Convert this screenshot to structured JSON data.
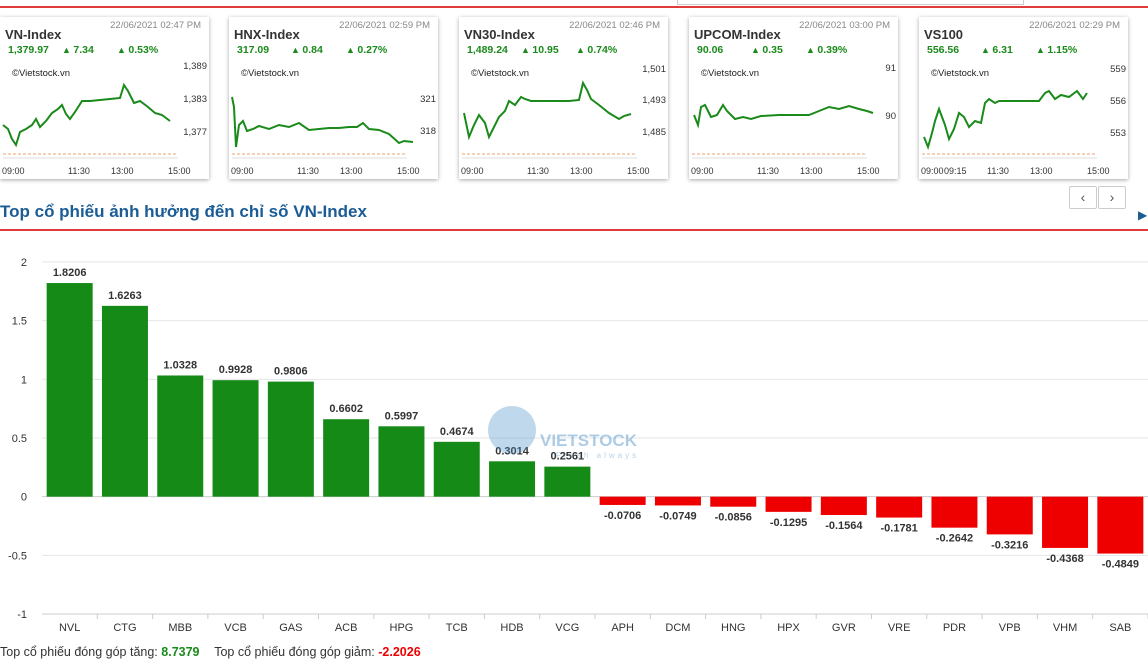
{
  "mini_charts": [
    {
      "name": "VN-Index",
      "timestamp": "22/06/2021 02:47 PM",
      "value": "1,379.97",
      "change": "7.34",
      "percent": "0.53%",
      "watermark": "©Vietstock.vn",
      "y_ticks": [
        "1,389",
        "1,383",
        "1,377"
      ],
      "x_ticks": [
        "09:00",
        "11:30",
        "13:00",
        "15:00"
      ]
    },
    {
      "name": "HNX-Index",
      "timestamp": "22/06/2021 02:59 PM",
      "value": "317.09",
      "change": "0.84",
      "percent": "0.27%",
      "watermark": "©Vietstock.vn",
      "y_ticks": [
        "321",
        "318"
      ],
      "x_ticks": [
        "09:00",
        "11:30",
        "13:00",
        "15:00"
      ]
    },
    {
      "name": "VN30-Index",
      "timestamp": "22/06/2021 02:46 PM",
      "value": "1,489.24",
      "change": "10.95",
      "percent": "0.74%",
      "watermark": "©Vietstock.vn",
      "y_ticks": [
        "1,501",
        "1,493",
        "1,485"
      ],
      "x_ticks": [
        "09:00",
        "11:30",
        "13:00",
        "15:00"
      ]
    },
    {
      "name": "UPCOM-Index",
      "timestamp": "22/06/2021 03:00 PM",
      "value": "90.06",
      "change": "0.35",
      "percent": "0.39%",
      "watermark": "©Vietstock.vn",
      "y_ticks": [
        "91",
        "90"
      ],
      "x_ticks": [
        "09:00",
        "11:30",
        "13:00",
        "15:00"
      ]
    },
    {
      "name": "VS100",
      "timestamp": "22/06/2021 02:29 PM",
      "value": "556.56",
      "change": "6.31",
      "percent": "1.15%",
      "watermark": "©Vietstock.vn",
      "y_ticks": [
        "559",
        "556",
        "553"
      ],
      "x_ticks": [
        "09:00",
        "09:15",
        "11:30",
        "13:00",
        "15:00"
      ]
    }
  ],
  "section_title": "Top cổ phiếu ảnh hưởng đến chỉ số VN-Index",
  "nav": {
    "prev": "‹",
    "next": "›",
    "side_arrow": "▶"
  },
  "watermark": {
    "logo_text": "VIETSTOCK",
    "tagline": "Fresh always"
  },
  "colors": {
    "positive": "#168a16",
    "negative": "#ee0000",
    "accent": "#e03c3c",
    "title": "#1a5c96"
  },
  "chart_data": {
    "type": "bar",
    "categories": [
      "NVL",
      "CTG",
      "MBB",
      "VCB",
      "GAS",
      "ACB",
      "HPG",
      "TCB",
      "HDB",
      "VCG",
      "APH",
      "DCM",
      "HNG",
      "HPX",
      "GVR",
      "VRE",
      "PDR",
      "VPB",
      "VHM",
      "SAB"
    ],
    "values": [
      1.8206,
      1.6263,
      1.0328,
      0.9928,
      0.9806,
      0.6602,
      0.5997,
      0.4674,
      0.3014,
      0.2561,
      -0.0706,
      -0.0749,
      -0.0856,
      -0.1295,
      -0.1564,
      -0.1781,
      -0.2642,
      -0.3216,
      -0.4368,
      -0.4849
    ],
    "ylim": [
      -1,
      2
    ],
    "yticks": [
      "2",
      "1.5",
      "1",
      "0.5",
      "0",
      "-0.5",
      "-1"
    ],
    "grid": true
  },
  "footer": {
    "up_label": "Top cổ phiếu đóng góp tăng:",
    "up_value": "8.7379",
    "down_label": "Top cổ phiếu đóng góp giảm:",
    "down_value": "-2.2026"
  }
}
